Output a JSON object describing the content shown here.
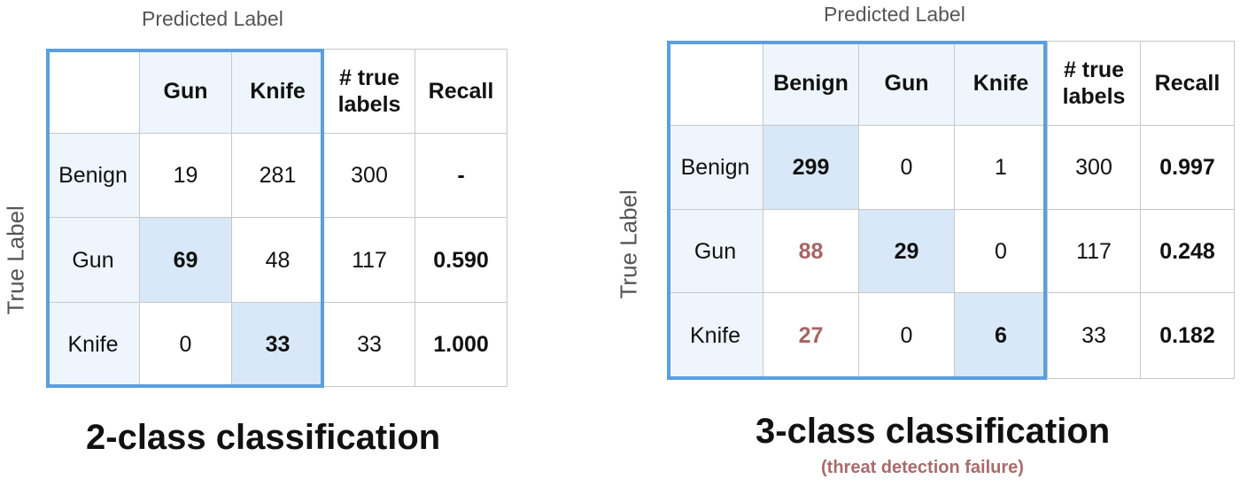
{
  "left": {
    "predicted_label": "Predicted Label",
    "true_label": "True Label",
    "headers": [
      "",
      "Gun",
      "Knife",
      "# true labels",
      "Recall"
    ],
    "rows": [
      {
        "label": "Benign",
        "cells": [
          "19",
          "281"
        ],
        "total": "300",
        "recall": "-"
      },
      {
        "label": "Gun",
        "cells": [
          "69",
          "48"
        ],
        "total": "117",
        "recall": "0.590"
      },
      {
        "label": "Knife",
        "cells": [
          "0",
          "33"
        ],
        "total": "33",
        "recall": "1.000"
      }
    ],
    "caption": "2-class classification"
  },
  "right": {
    "predicted_label": "Predicted Label",
    "true_label": "True Label",
    "headers": [
      "",
      "Benign",
      "Gun",
      "Knife",
      "# true labels",
      "Recall"
    ],
    "rows": [
      {
        "label": "Benign",
        "cells": [
          "299",
          "0",
          "1"
        ],
        "total": "300",
        "recall": "0.997"
      },
      {
        "label": "Gun",
        "cells": [
          "88",
          "29",
          "0"
        ],
        "total": "117",
        "recall": "0.248"
      },
      {
        "label": "Knife",
        "cells": [
          "27",
          "0",
          "6"
        ],
        "total": "33",
        "recall": "0.182"
      }
    ],
    "caption": "3-class classification",
    "subcaption": "(threat detection failure)"
  },
  "colors": {
    "frame": "#5a9fe0",
    "header_tint": "#eef5fd",
    "diagonal_highlight": "#d8e8f8",
    "misclassified_text": "#a66464"
  }
}
